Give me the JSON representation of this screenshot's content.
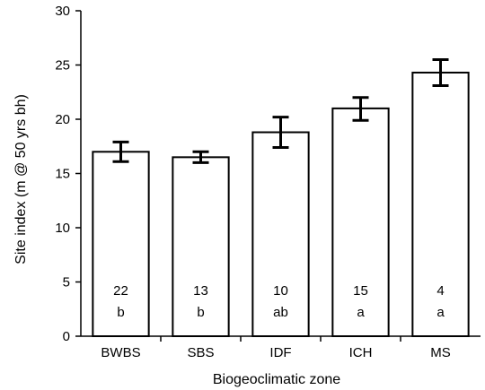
{
  "chart_data": {
    "type": "bar",
    "title": "",
    "xlabel": "Biogeoclimatic zone",
    "ylabel": "Site index (m @ 50 yrs bh)",
    "ylim": [
      0,
      30
    ],
    "yticks": [
      0,
      5,
      10,
      15,
      20,
      25,
      30
    ],
    "grid": false,
    "legend": "none",
    "categories": [
      "BWBS",
      "SBS",
      "IDF",
      "ICH",
      "MS"
    ],
    "values": [
      17.0,
      16.5,
      18.8,
      21.0,
      24.3
    ],
    "error_low": [
      16.1,
      16.0,
      17.4,
      19.9,
      23.1
    ],
    "error_high": [
      17.9,
      17.0,
      20.2,
      22.0,
      25.5
    ],
    "sample_sizes": [
      "22",
      "13",
      "10",
      "15",
      "4"
    ],
    "significance_letters": [
      "b",
      "b",
      "ab",
      "a",
      "a"
    ],
    "bar_fill": "#ffffff",
    "bar_stroke": "#000000"
  }
}
